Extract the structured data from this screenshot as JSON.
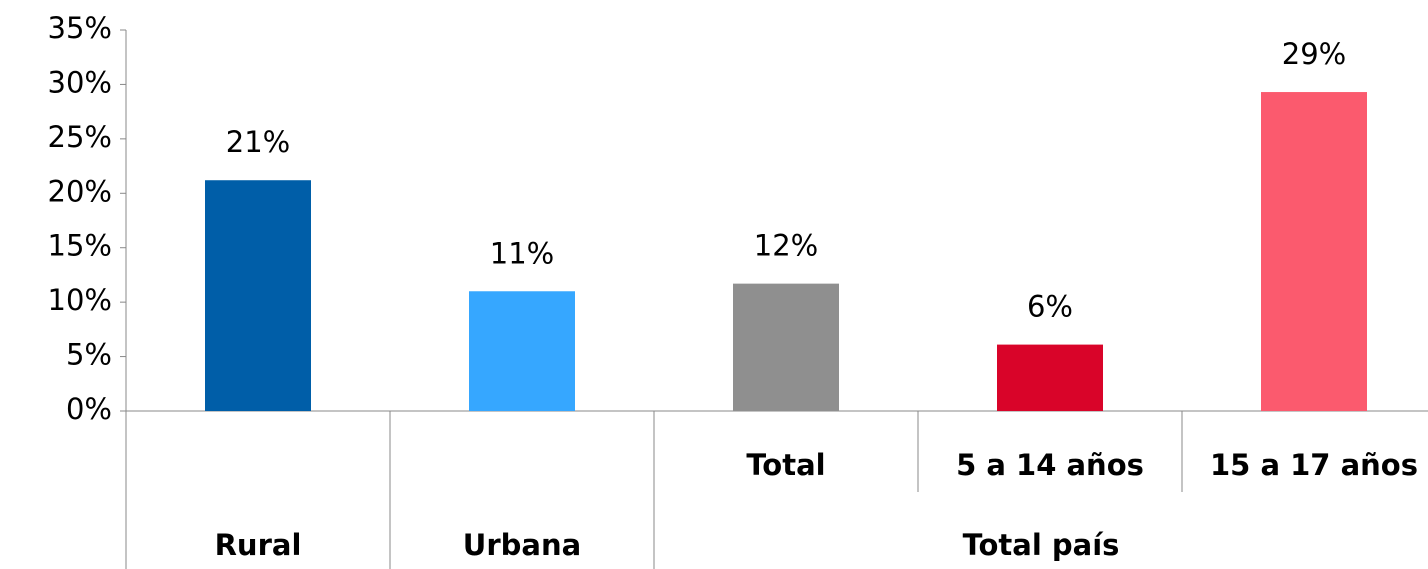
{
  "chart_data": {
    "type": "bar",
    "categories": [
      null,
      null,
      "Total",
      "5 a 14 años",
      "15 a 17 años"
    ],
    "groups": [
      {
        "name": "Rural",
        "members": [
          0
        ]
      },
      {
        "name": "Urbana",
        "members": [
          1
        ]
      },
      {
        "name": "Total país",
        "members": [
          2,
          3,
          4
        ]
      }
    ],
    "values": [
      21.2,
      11,
      11.7,
      6.1,
      29.3
    ],
    "value_labels": [
      "21%",
      "11%",
      "12%",
      "6%",
      "29%"
    ],
    "colors": [
      "#005ea8",
      "#36a7ff",
      "#8f8f8f",
      "#d90429",
      "#fb5a6e"
    ],
    "ylim": [
      0,
      35
    ],
    "yticks": [
      {
        "value": 0,
        "label": "0%"
      },
      {
        "value": 5,
        "label": "5%"
      },
      {
        "value": 10,
        "label": "10%"
      },
      {
        "value": 15,
        "label": "15%"
      },
      {
        "value": 20,
        "label": "20%"
      },
      {
        "value": 25,
        "label": "25%"
      },
      {
        "value": 30,
        "label": "30%"
      },
      {
        "value": 35,
        "label": "35%"
      }
    ],
    "grid": false
  }
}
